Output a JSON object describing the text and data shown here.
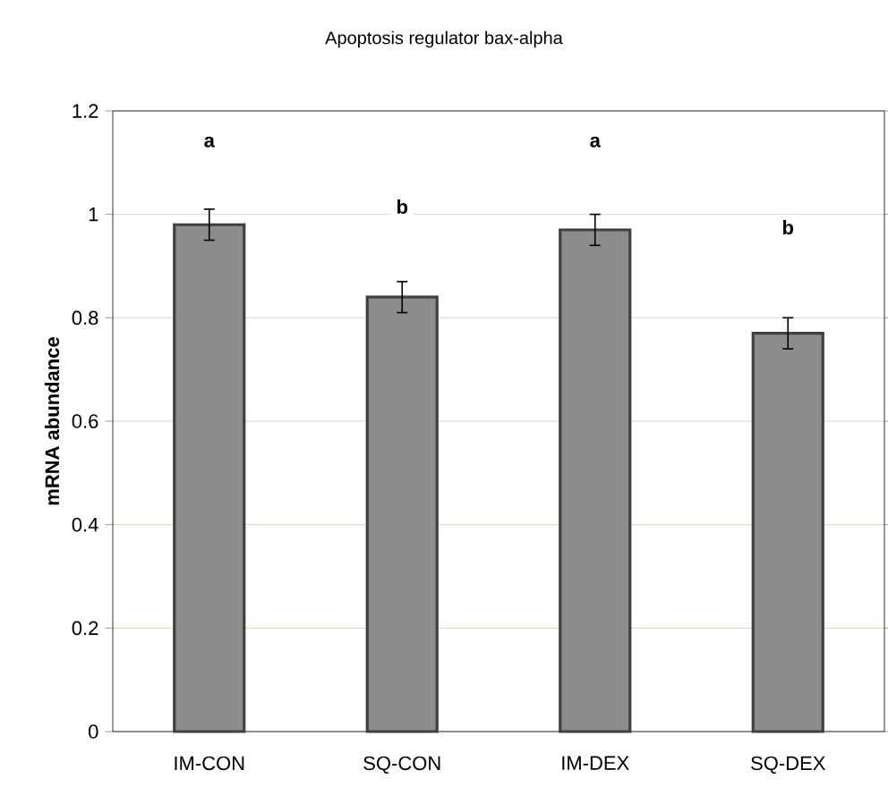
{
  "chart_data": {
    "type": "bar",
    "title": "Apoptosis regulator bax-alpha",
    "ylabel": "mRNA abundance",
    "categories": [
      "IM-CON",
      "SQ-CON",
      "IM-DEX",
      "SQ-DEX"
    ],
    "values": [
      0.98,
      0.84,
      0.97,
      0.77
    ],
    "errors": [
      0.03,
      0.03,
      0.03,
      0.03
    ],
    "color": "#8c8c8c",
    "ylim": [
      0,
      1.2
    ],
    "yticks": [
      0,
      0.2,
      0.4,
      0.6,
      0.8,
      1,
      1.2
    ],
    "grid": "y",
    "annotations": [
      {
        "text": "a",
        "x": "IM-CON",
        "y": 1.14
      },
      {
        "text": "b",
        "x": "SQ-CON",
        "y": 1.015
      },
      {
        "text": "a",
        "x": "IM-DEX",
        "y": 1.14
      },
      {
        "text": "b",
        "x": "SQ-DEX",
        "y": 0.975
      }
    ]
  }
}
